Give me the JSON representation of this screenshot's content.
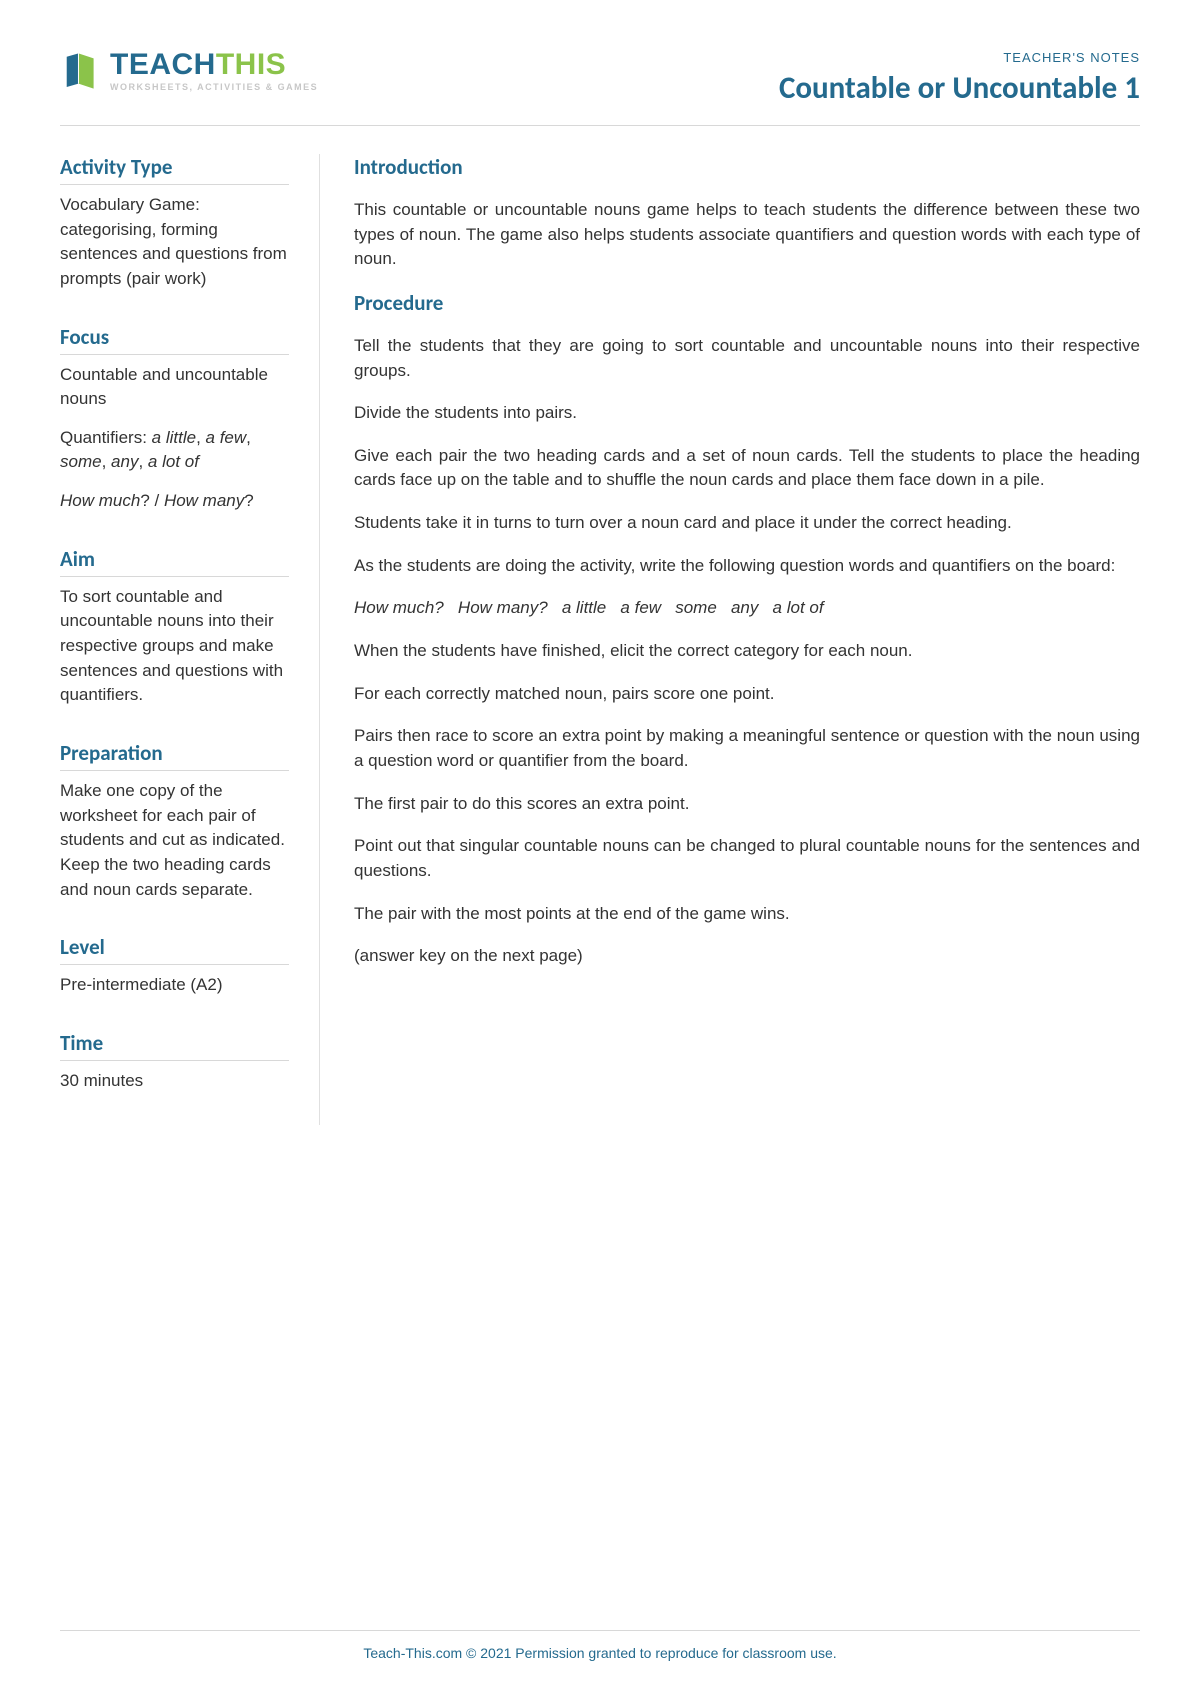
{
  "colors": {
    "brand_blue": "#246a8e",
    "brand_green": "#8bc34a",
    "divider": "#d8d8d8",
    "text": "#333333",
    "tagline_gray": "#c7c7c7",
    "background": "#ffffff"
  },
  "typography": {
    "title_fontsize_pt": 23,
    "heading_fontsize_pt": 16,
    "body_fontsize_pt": 13,
    "footer_fontsize_pt": 10
  },
  "header": {
    "logo_brand_teach": "TEACH",
    "logo_brand_this": "THIS",
    "logo_tagline": "WORKSHEETS, ACTIVITIES & GAMES",
    "notes_label": "TEACHER'S NOTES",
    "document_title": "Countable or Uncountable 1"
  },
  "sidebar": [
    {
      "heading": "Activity Type",
      "paragraphs": [
        {
          "text": "Vocabulary Game: categorising, forming sentences and questions from prompts (pair work)"
        }
      ]
    },
    {
      "heading": "Focus",
      "paragraphs": [
        {
          "text": "Countable and uncountable nouns"
        },
        {
          "html": "Quantifiers: <em>a little</em>, <em>a few</em>, <em>some</em>, <em>any</em>, <em>a lot of</em>"
        },
        {
          "html": "<em>How much</em>? / <em>How many</em>?"
        }
      ]
    },
    {
      "heading": "Aim",
      "paragraphs": [
        {
          "text": "To sort countable and uncountable nouns into their respective groups and make sentences and questions with quantifiers."
        }
      ]
    },
    {
      "heading": "Preparation",
      "paragraphs": [
        {
          "text": "Make one copy of the worksheet for each pair of students and cut as indicated. Keep the two heading cards and noun cards separate."
        }
      ]
    },
    {
      "heading": "Level",
      "paragraphs": [
        {
          "text": "Pre-intermediate (A2)"
        }
      ]
    },
    {
      "heading": "Time",
      "paragraphs": [
        {
          "text": "30 minutes"
        }
      ]
    }
  ],
  "main": [
    {
      "heading": "Introduction",
      "paragraphs": [
        {
          "text": "This countable or uncountable nouns game helps to teach students the difference between these two types of noun. The game also helps students associate quantifiers and question words with each type of noun."
        }
      ]
    },
    {
      "heading": "Procedure",
      "paragraphs": [
        {
          "text": "Tell the students that they are going to sort countable and uncountable nouns into their respective groups."
        },
        {
          "text": "Divide the students into pairs."
        },
        {
          "text": "Give each pair the two heading cards and a set of noun cards. Tell the students to place the heading cards face up on the table and to shuffle the noun cards and place them face down in a pile."
        },
        {
          "text": "Students take it in turns to turn over a noun card and place it under the correct heading."
        },
        {
          "text": "As the students are doing the activity, write the following question words and quantifiers on the board:"
        },
        {
          "html": "<em>How much? &nbsp; How many? &nbsp; a little &nbsp; a few &nbsp; some &nbsp; any &nbsp; a lot of</em>"
        },
        {
          "text": "When the students have finished, elicit the correct category for each noun."
        },
        {
          "text": "For each correctly matched noun, pairs score one point."
        },
        {
          "text": "Pairs then race to score an extra point by making a meaningful sentence or question with the noun using a question word or quantifier from the board."
        },
        {
          "text": "The first pair to do this scores an extra point."
        },
        {
          "text": "Point out that singular countable nouns can be changed to plural countable nouns for the sentences and questions."
        },
        {
          "text": "The pair with the most points at the end of the game wins."
        },
        {
          "text": "(answer key on the next page)"
        }
      ]
    }
  ],
  "footer": {
    "text": "Teach-This.com © 2021 Permission granted to reproduce for classroom use."
  }
}
